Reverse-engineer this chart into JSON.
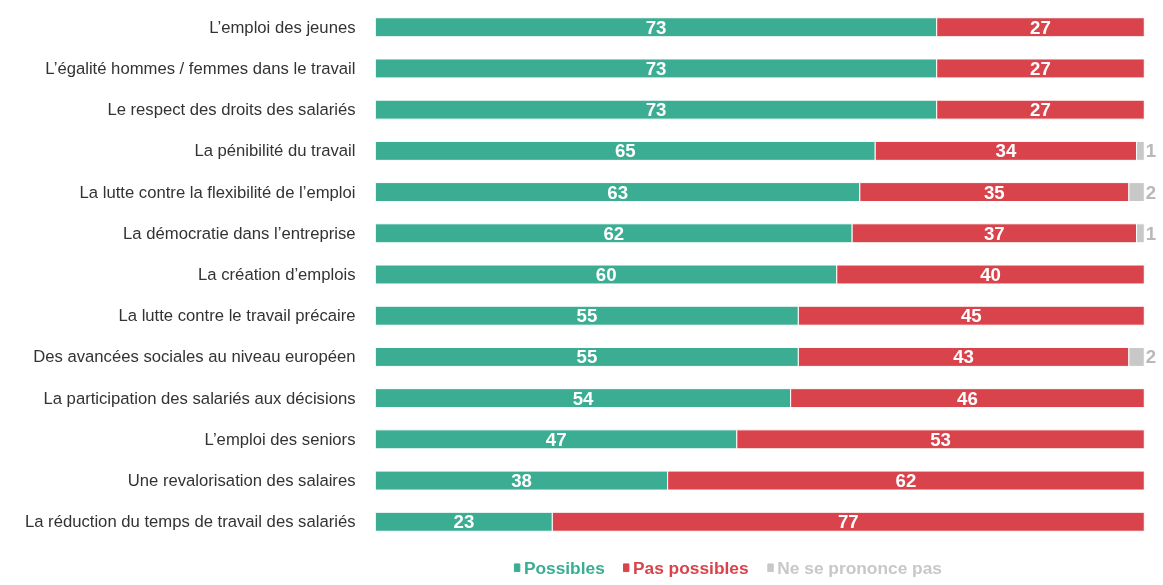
{
  "chart_data": {
    "type": "bar",
    "orientation": "horizontal",
    "stacked": true,
    "data_labels": true,
    "legend": "bottom",
    "grid": false,
    "categories": [
      "L’emploi des jeunes",
      "L’égalité hommes / femmes dans le travail",
      "Le respect des droits des salariés",
      "La pénibilité du travail",
      "La lutte contre la flexibilité de l’emploi",
      "La démocratie dans l’entreprise",
      "La création d’emplois",
      "La lutte contre le travail précaire",
      "Des avancées sociales au niveau européen",
      "La participation des salariés aux décisions",
      "L’emploi des seniors",
      "Une revalorisation des salaires",
      "La réduction du temps de travail des salariés"
    ],
    "series": [
      {
        "name": "Possibles",
        "color": "#3aad92",
        "values": [
          73,
          73,
          73,
          65,
          63,
          62,
          60,
          55,
          55,
          54,
          47,
          38,
          23
        ]
      },
      {
        "name": "Pas possibles",
        "color": "#d9434c",
        "values": [
          27,
          27,
          27,
          34,
          35,
          37,
          40,
          45,
          43,
          46,
          53,
          62,
          77
        ]
      },
      {
        "name": "Ne se prononce pas",
        "color": "#c8c8c8",
        "values": [
          null,
          null,
          null,
          1,
          2,
          1,
          null,
          null,
          2,
          null,
          null,
          null,
          null
        ]
      }
    ]
  }
}
